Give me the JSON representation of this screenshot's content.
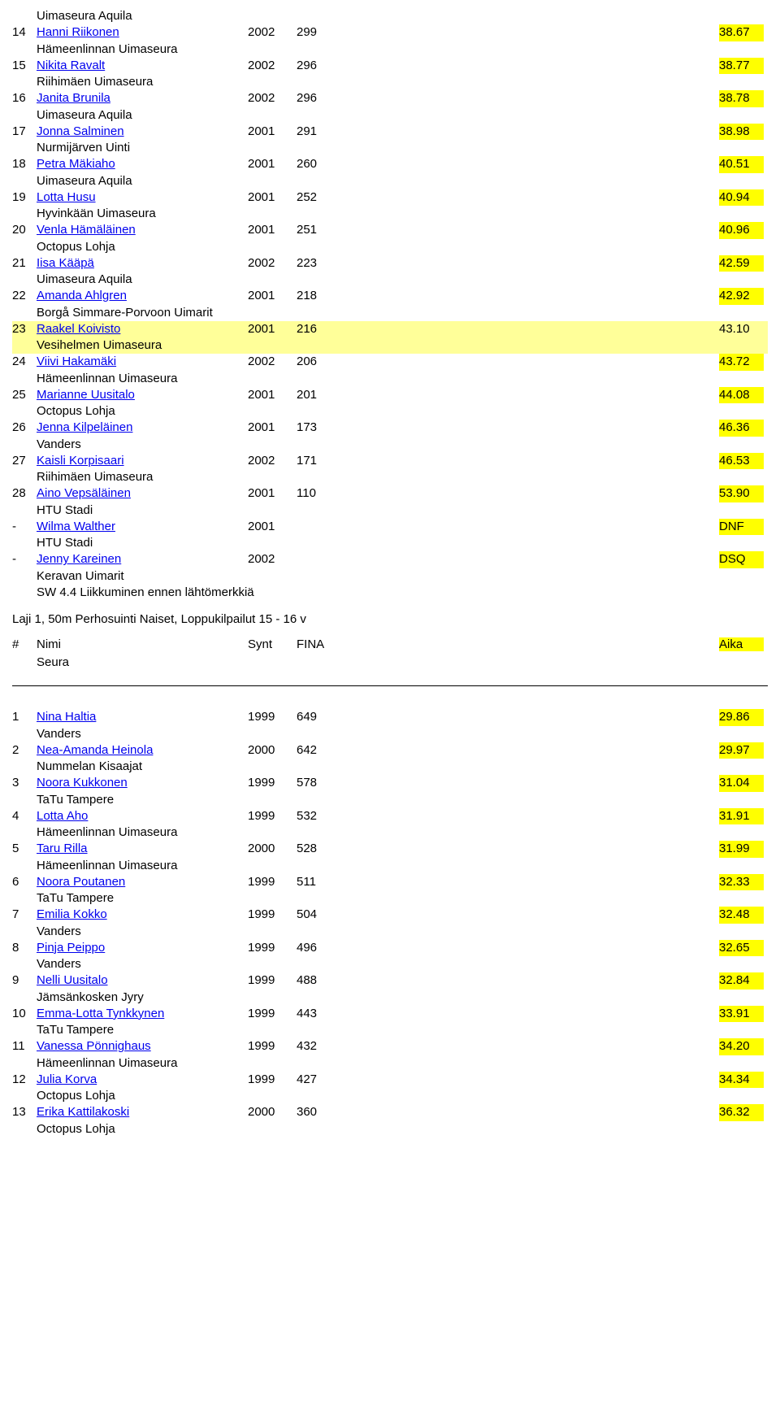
{
  "top_club_line": "Uimaseura Aquila",
  "first_list": [
    {
      "rank": "14",
      "name": "Hanni Riikonen",
      "year": "2002",
      "fina": "299",
      "time": "38.67",
      "club": "Hämeenlinnan Uimaseura",
      "highlight": false
    },
    {
      "rank": "15",
      "name": "Nikita Ravalt",
      "year": "2002",
      "fina": "296",
      "time": "38.77",
      "club": "Riihimäen Uimaseura",
      "highlight": false
    },
    {
      "rank": "16",
      "name": "Janita Brunila",
      "year": "2002",
      "fina": "296",
      "time": "38.78",
      "club": "Uimaseura Aquila",
      "highlight": false
    },
    {
      "rank": "17",
      "name": "Jonna Salminen",
      "year": "2001",
      "fina": "291",
      "time": "38.98",
      "club": "Nurmijärven Uinti",
      "highlight": false
    },
    {
      "rank": "18",
      "name": "Petra Mäkiaho",
      "year": "2001",
      "fina": "260",
      "time": "40.51",
      "club": "Uimaseura Aquila",
      "highlight": false
    },
    {
      "rank": "19",
      "name": "Lotta Husu",
      "year": "2001",
      "fina": "252",
      "time": "40.94",
      "club": "Hyvinkään Uimaseura",
      "highlight": false
    },
    {
      "rank": "20",
      "name": "Venla Hämäläinen",
      "year": "2001",
      "fina": "251",
      "time": "40.96",
      "club": "Octopus Lohja",
      "highlight": false
    },
    {
      "rank": "21",
      "name": "Iisa Kääpä",
      "year": "2002",
      "fina": "223",
      "time": "42.59",
      "club": "Uimaseura Aquila",
      "highlight": false
    },
    {
      "rank": "22",
      "name": "Amanda Ahlgren",
      "year": "2001",
      "fina": "218",
      "time": "42.92",
      "club": "Borgå Simmare-Porvoon Uimarit",
      "highlight": false
    },
    {
      "rank": "23",
      "name": "Raakel Koivisto",
      "year": "2001",
      "fina": "216",
      "time": "43.10",
      "club": "Vesihelmen Uimaseura",
      "highlight": true
    },
    {
      "rank": "24",
      "name": "Viivi Hakamäki",
      "year": "2002",
      "fina": "206",
      "time": "43.72",
      "club": "Hämeenlinnan Uimaseura",
      "highlight": false
    },
    {
      "rank": "25",
      "name": "Marianne Uusitalo",
      "year": "2001",
      "fina": "201",
      "time": "44.08",
      "club": "Octopus Lohja",
      "highlight": false
    },
    {
      "rank": "26",
      "name": "Jenna Kilpeläinen",
      "year": "2001",
      "fina": "173",
      "time": "46.36",
      "club": "Vanders",
      "highlight": false
    },
    {
      "rank": "27",
      "name": "Kaisli Korpisaari",
      "year": "2002",
      "fina": "171",
      "time": "46.53",
      "club": "Riihimäen Uimaseura",
      "highlight": false
    },
    {
      "rank": "28",
      "name": "Aino Vepsäläinen",
      "year": "2001",
      "fina": "110",
      "time": "53.90",
      "club": "HTU Stadi",
      "highlight": false
    },
    {
      "rank": "-",
      "name": "Wilma Walther",
      "year": "2001",
      "fina": "",
      "time": "DNF",
      "club": "HTU Stadi",
      "highlight": false
    },
    {
      "rank": "-",
      "name": "Jenny Kareinen",
      "year": "2002",
      "fina": "",
      "time": "DSQ",
      "club": "Keravan Uimarit",
      "highlight": false,
      "note": "SW 4.4 Liikkuminen ennen lähtömerkkiä"
    }
  ],
  "section_title": "Laji 1, 50m Perhosuinti Naiset, Loppukilpailut 15 - 16 v",
  "header": {
    "rank": "#",
    "name": "Nimi",
    "year": "Synt",
    "fina": "FINA",
    "time": "Aika",
    "club": "Seura"
  },
  "second_list": [
    {
      "rank": "1",
      "name": "Nina Haltia",
      "year": "1999",
      "fina": "649",
      "time": "29.86",
      "club": "Vanders"
    },
    {
      "rank": "2",
      "name": "Nea-Amanda Heinola",
      "year": "2000",
      "fina": "642",
      "time": "29.97",
      "club": "Nummelan Kisaajat"
    },
    {
      "rank": "3",
      "name": "Noora Kukkonen",
      "year": "1999",
      "fina": "578",
      "time": "31.04",
      "club": "TaTu Tampere"
    },
    {
      "rank": "4",
      "name": "Lotta Aho",
      "year": "1999",
      "fina": "532",
      "time": "31.91",
      "club": "Hämeenlinnan Uimaseura"
    },
    {
      "rank": "5",
      "name": "Taru Rilla",
      "year": "2000",
      "fina": "528",
      "time": "31.99",
      "club": "Hämeenlinnan Uimaseura"
    },
    {
      "rank": "6",
      "name": "Noora Poutanen",
      "year": "1999",
      "fina": "511",
      "time": "32.33",
      "club": "TaTu Tampere"
    },
    {
      "rank": "7",
      "name": "Emilia Kokko",
      "year": "1999",
      "fina": "504",
      "time": "32.48",
      "club": "Vanders"
    },
    {
      "rank": "8",
      "name": "Pinja Peippo",
      "year": "1999",
      "fina": "496",
      "time": "32.65",
      "club": "Vanders"
    },
    {
      "rank": "9",
      "name": "Nelli Uusitalo",
      "year": "1999",
      "fina": "488",
      "time": "32.84",
      "club": "Jämsänkosken Jyry"
    },
    {
      "rank": "10",
      "name": "Emma-Lotta Tynkkynen",
      "year": "1999",
      "fina": "443",
      "time": "33.91",
      "club": "TaTu Tampere"
    },
    {
      "rank": "11",
      "name": "Vanessa Pönnighaus",
      "year": "1999",
      "fina": "432",
      "time": "34.20",
      "club": "Hämeenlinnan Uimaseura"
    },
    {
      "rank": "12",
      "name": "Julia Korva",
      "year": "1999",
      "fina": "427",
      "time": "34.34",
      "club": "Octopus Lohja"
    },
    {
      "rank": "13",
      "name": "Erika Kattilakoski",
      "year": "2000",
      "fina": "360",
      "time": "36.32",
      "club": "Octopus Lohja"
    }
  ],
  "colors": {
    "link_color": "#0000ee",
    "time_bg": "#ffff00",
    "highlight_bg": "#ffff99",
    "text_color": "#000000",
    "page_bg": "#ffffff"
  }
}
